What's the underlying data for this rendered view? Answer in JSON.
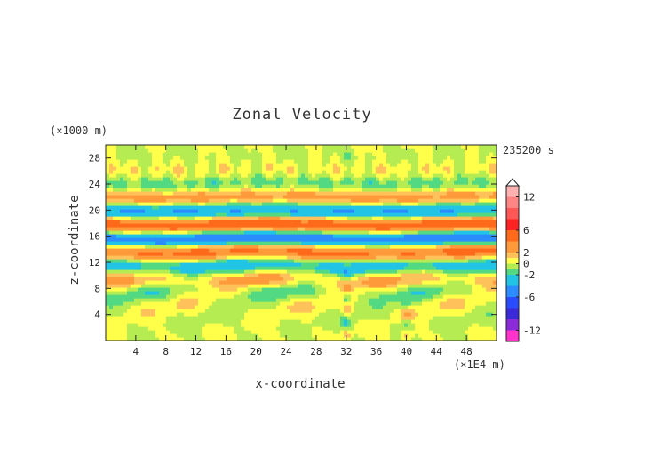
{
  "chart_data": {
    "type": "heatmap",
    "title": "Zonal Velocity",
    "xlabel": "x-coordinate",
    "ylabel": "z-coordinate",
    "x_unit": "(×1E4 m)",
    "y_unit": "(×1000 m)",
    "time_label": "235200 s",
    "x_range": [
      0,
      52
    ],
    "y_range": [
      0,
      30
    ],
    "x_ticks": [
      4,
      8,
      12,
      16,
      20,
      24,
      28,
      32,
      36,
      40,
      44,
      48
    ],
    "y_ticks": [
      4,
      8,
      12,
      16,
      20,
      24,
      28
    ],
    "colorbar": {
      "range": [
        -14,
        14
      ],
      "tick_labels": [
        "12",
        "6",
        "2",
        "0",
        "-2",
        "-6",
        "-12"
      ],
      "tick_values": [
        12,
        6,
        2,
        0,
        -2,
        -6,
        -12
      ],
      "levels": [
        {
          "from": 12,
          "to": 14,
          "color": "#ffb0b0"
        },
        {
          "from": 10,
          "to": 12,
          "color": "#ff8585"
        },
        {
          "from": 8,
          "to": 10,
          "color": "#ff5656"
        },
        {
          "from": 6,
          "to": 8,
          "color": "#ff2222"
        },
        {
          "from": 4,
          "to": 6,
          "color": "#ff6a1a"
        },
        {
          "from": 2,
          "to": 4,
          "color": "#ff9a3a"
        },
        {
          "from": 1,
          "to": 2,
          "color": "#ffc25a"
        },
        {
          "from": 0,
          "to": 1,
          "color": "#ffff4a"
        },
        {
          "from": -1,
          "to": 0,
          "color": "#b4ec52"
        },
        {
          "from": -2,
          "to": -1,
          "color": "#52d982"
        },
        {
          "from": -4,
          "to": -2,
          "color": "#22c4e6"
        },
        {
          "from": -6,
          "to": -4,
          "color": "#2a8cff"
        },
        {
          "from": -8,
          "to": -6,
          "color": "#2a4cff"
        },
        {
          "from": -10,
          "to": -8,
          "color": "#3a2ad8"
        },
        {
          "from": -12,
          "to": -10,
          "color": "#8a2ad8"
        },
        {
          "from": -14,
          "to": -12,
          "color": "#ff33cc"
        }
      ]
    },
    "field_description": "Alternating horizontal bands of positive (orange/red) and negative (blue) zonal velocity between z≈10 and z≈22 km; near-zero (yellow/green) elsewhere; disturbances near x≈32 and x≈40."
  }
}
